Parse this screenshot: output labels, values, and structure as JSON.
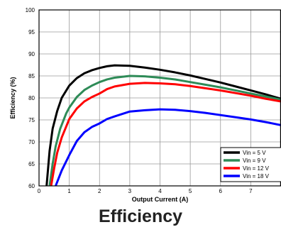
{
  "chart_data": {
    "type": "line",
    "title": "Efficiency",
    "xlabel": "Output Current (A)",
    "ylabel": "Efficiency (%)",
    "xlim": [
      0,
      8
    ],
    "ylim": [
      60,
      100
    ],
    "x_ticks": [
      "0",
      "1",
      "2",
      "3",
      "4",
      "5",
      "6",
      "7"
    ],
    "y_ticks": [
      "60",
      "65",
      "70",
      "75",
      "80",
      "85",
      "90",
      "95",
      "100"
    ],
    "grid": true,
    "legend_position": "bottom-right",
    "series": [
      {
        "name": "Vin = 5 V",
        "color": "#000000",
        "points": [
          [
            0.25,
            60
          ],
          [
            0.35,
            68
          ],
          [
            0.45,
            73
          ],
          [
            0.6,
            77
          ],
          [
            0.75,
            80
          ],
          [
            1.0,
            82.8
          ],
          [
            1.25,
            84.5
          ],
          [
            1.5,
            85.6
          ],
          [
            1.75,
            86.3
          ],
          [
            2.0,
            86.8
          ],
          [
            2.25,
            87.2
          ],
          [
            2.5,
            87.4
          ],
          [
            3.0,
            87.3
          ],
          [
            3.5,
            86.9
          ],
          [
            4.0,
            86.4
          ],
          [
            4.5,
            85.8
          ],
          [
            5.0,
            85.1
          ],
          [
            5.5,
            84.3
          ],
          [
            6.0,
            83.5
          ],
          [
            6.5,
            82.6
          ],
          [
            7.0,
            81.7
          ],
          [
            7.5,
            80.8
          ],
          [
            8.0,
            79.8
          ]
        ]
      },
      {
        "name": "Vin = 9 V",
        "color": "#2e8b57",
        "points": [
          [
            0.35,
            60
          ],
          [
            0.45,
            65
          ],
          [
            0.55,
            69
          ],
          [
            0.7,
            73
          ],
          [
            0.9,
            76.5
          ],
          [
            1.0,
            77.8
          ],
          [
            1.25,
            80.2
          ],
          [
            1.5,
            81.8
          ],
          [
            1.75,
            82.8
          ],
          [
            2.0,
            83.6
          ],
          [
            2.25,
            84.2
          ],
          [
            2.5,
            84.6
          ],
          [
            3.0,
            85.0
          ],
          [
            3.5,
            84.9
          ],
          [
            4.0,
            84.6
          ],
          [
            4.5,
            84.2
          ],
          [
            5.0,
            83.6
          ],
          [
            5.5,
            83.0
          ],
          [
            6.0,
            82.4
          ],
          [
            6.5,
            81.7
          ],
          [
            7.0,
            81.0
          ],
          [
            7.5,
            80.3
          ],
          [
            8.0,
            79.6
          ]
        ]
      },
      {
        "name": "Vin = 12 V",
        "color": "#ff0000",
        "points": [
          [
            0.4,
            60
          ],
          [
            0.5,
            64
          ],
          [
            0.6,
            67.5
          ],
          [
            0.75,
            71
          ],
          [
            1.0,
            75.2
          ],
          [
            1.25,
            77.6
          ],
          [
            1.5,
            79.2
          ],
          [
            1.75,
            80.2
          ],
          [
            2.0,
            81.0
          ],
          [
            2.25,
            82.0
          ],
          [
            2.5,
            82.6
          ],
          [
            3.0,
            83.2
          ],
          [
            3.5,
            83.4
          ],
          [
            4.0,
            83.3
          ],
          [
            4.5,
            83.1
          ],
          [
            5.0,
            82.7
          ],
          [
            5.5,
            82.2
          ],
          [
            6.0,
            81.7
          ],
          [
            6.5,
            81.1
          ],
          [
            7.0,
            80.5
          ],
          [
            7.5,
            79.8
          ],
          [
            8.0,
            79.2
          ]
        ]
      },
      {
        "name": "Vin = 18 V",
        "color": "#0000ff",
        "points": [
          [
            0.55,
            60
          ],
          [
            0.75,
            63.5
          ],
          [
            1.0,
            67.0
          ],
          [
            1.25,
            70.2
          ],
          [
            1.5,
            72.2
          ],
          [
            1.75,
            73.4
          ],
          [
            2.0,
            74.2
          ],
          [
            2.25,
            75.2
          ],
          [
            2.5,
            75.8
          ],
          [
            3.0,
            76.9
          ],
          [
            3.5,
            77.2
          ],
          [
            4.0,
            77.4
          ],
          [
            4.5,
            77.3
          ],
          [
            5.0,
            77.0
          ],
          [
            5.5,
            76.6
          ],
          [
            6.0,
            76.1
          ],
          [
            6.5,
            75.6
          ],
          [
            7.0,
            75.1
          ],
          [
            7.5,
            74.5
          ],
          [
            8.0,
            73.8
          ]
        ]
      }
    ]
  }
}
